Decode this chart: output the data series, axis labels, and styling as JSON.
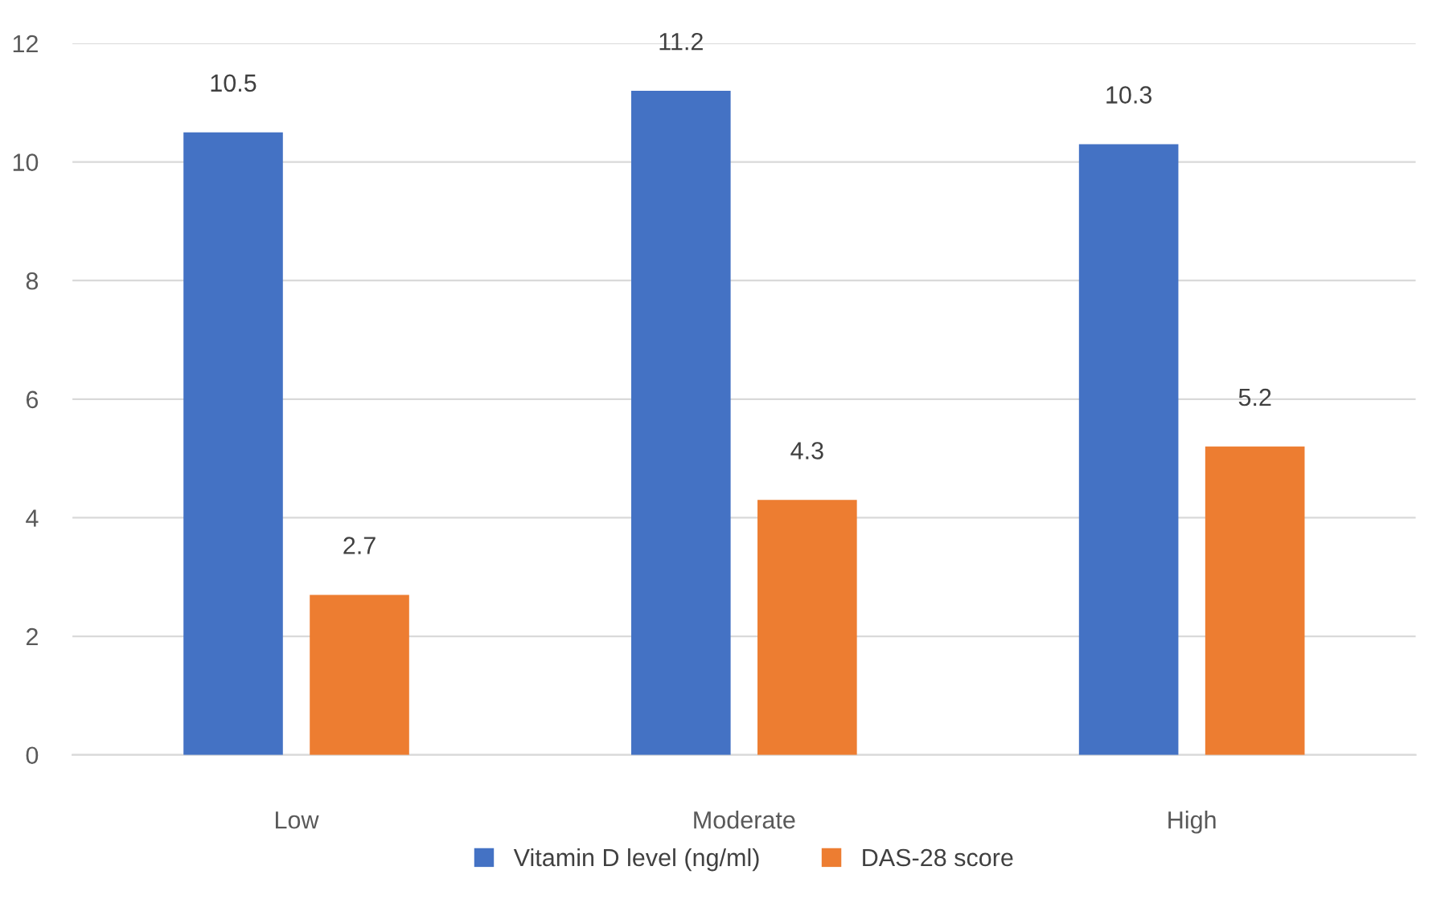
{
  "chart_data": {
    "type": "bar",
    "categories": [
      "Low",
      "Moderate",
      "High"
    ],
    "series": [
      {
        "name": "Vitamin D level (ng/ml)",
        "color": "#4472c4",
        "values": [
          10.5,
          11.2,
          10.3
        ]
      },
      {
        "name": "DAS-28 score",
        "color": "#ed7d31",
        "values": [
          2.7,
          4.3,
          5.2
        ]
      }
    ],
    "ylim": [
      0,
      12
    ],
    "yticks": [
      0,
      2,
      4,
      6,
      8,
      10,
      12
    ],
    "grid": "y",
    "legend": "bottom",
    "data_labels": true
  }
}
